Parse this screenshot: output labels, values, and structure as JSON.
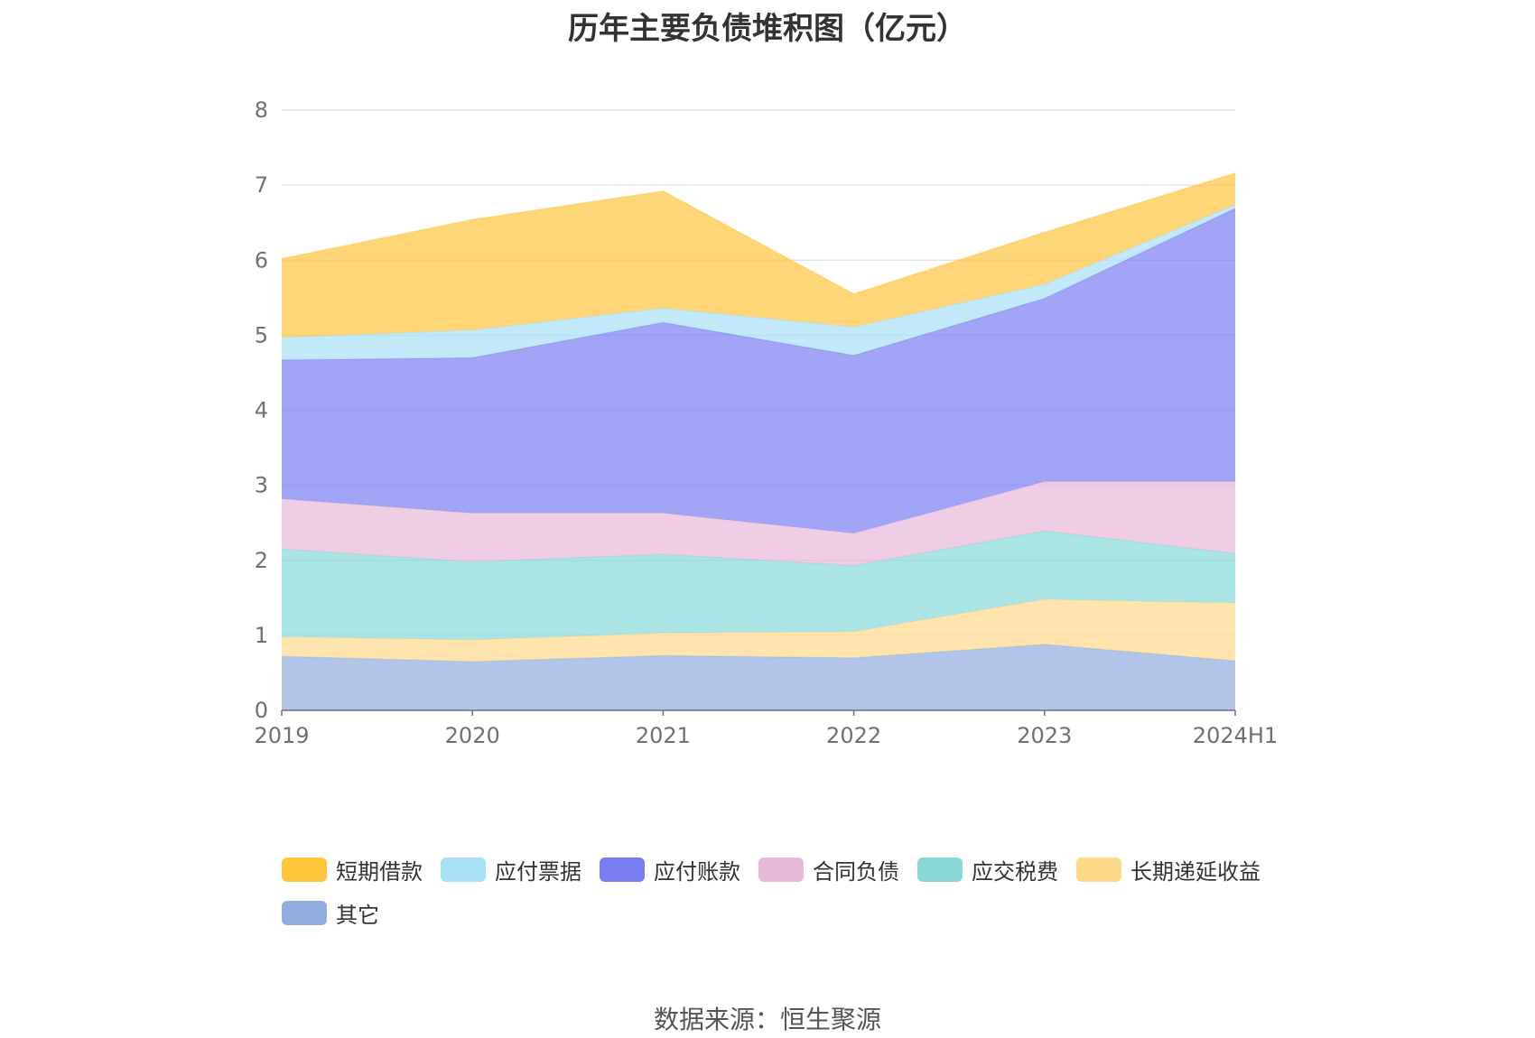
{
  "chart_data": {
    "type": "area",
    "stacked": true,
    "title": "历年主要负债堆积图（亿元）",
    "categories": [
      "2019",
      "2020",
      "2021",
      "2022",
      "2023",
      "2024H1"
    ],
    "ylim": [
      0,
      8
    ],
    "yticks": [
      "0",
      "1",
      "2",
      "3",
      "4",
      "5",
      "6",
      "7",
      "8"
    ],
    "grid": true,
    "legend_position": "bottom",
    "series": [
      {
        "name": "其它",
        "color": "#91acdf",
        "values": [
          0.72,
          0.65,
          0.73,
          0.7,
          0.88,
          0.66
        ]
      },
      {
        "name": "长期递延收益",
        "color": "#ffd98a",
        "values": [
          0.26,
          0.29,
          0.3,
          0.35,
          0.6,
          0.77
        ]
      },
      {
        "name": "应交税费",
        "color": "#88d8d8",
        "values": [
          1.17,
          1.04,
          1.05,
          0.88,
          0.91,
          0.66
        ]
      },
      {
        "name": "合同负债",
        "color": "#e8b8d8",
        "values": [
          0.67,
          0.65,
          0.55,
          0.43,
          0.66,
          0.96
        ]
      },
      {
        "name": "应付账款",
        "color": "#7a7df2",
        "values": [
          1.85,
          2.07,
          2.54,
          2.37,
          2.44,
          3.64
        ]
      },
      {
        "name": "应付票据",
        "color": "#a8e0f8",
        "values": [
          0.3,
          0.37,
          0.19,
          0.38,
          0.19,
          0.05
        ]
      },
      {
        "name": "短期借款",
        "color": "#ffc53d",
        "values": [
          1.05,
          1.47,
          1.56,
          0.44,
          0.69,
          0.42
        ]
      }
    ]
  },
  "legend_order": [
    "短期借款",
    "应付票据",
    "应付账款",
    "合同负债",
    "应交税费",
    "长期递延收益",
    "其它"
  ],
  "source_text": "数据来源：恒生聚源"
}
